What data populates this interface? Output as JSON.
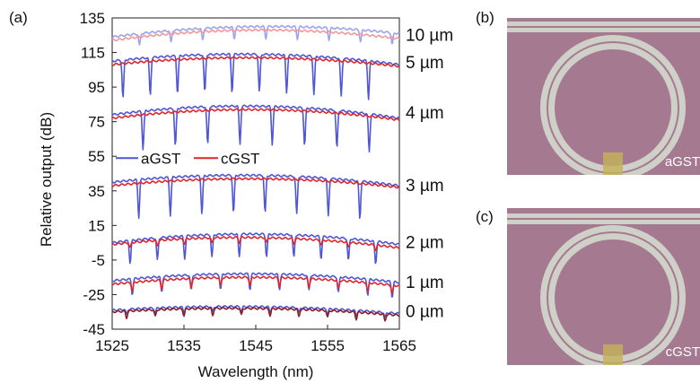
{
  "figure": {
    "panel_labels": {
      "a": "(a)",
      "b": "(b)",
      "c": "(c)"
    },
    "micrograph_b_label": "aGST",
    "micrograph_c_label": "cGST",
    "colors": {
      "aGST": "#4f56d8",
      "aGST_light": "#9fa2ec",
      "cGST": "#e0262c",
      "cGST_light": "#f0989b",
      "cGST_dark": "#8b1d24",
      "substrate": "#a57a91",
      "waveguide": "#cfd0c8",
      "gst_patch": "#c4b25a"
    }
  },
  "chart_data": {
    "type": "line",
    "title": "",
    "xlabel": "Wavelength (nm)",
    "ylabel": "Relative output (dB)",
    "xlim": [
      1525,
      1565
    ],
    "ylim": [
      -45,
      135
    ],
    "xticks": [
      "1525",
      "1535",
      "1545",
      "1555",
      "1565"
    ],
    "yticks": [
      "135",
      "115",
      "95",
      "75",
      "55",
      "35",
      "15",
      "-5",
      "-25",
      "-45"
    ],
    "legend": {
      "placement": "center-left",
      "entries": [
        "aGST",
        "cGST"
      ]
    },
    "grid": false,
    "series": [
      {
        "name": "aGST",
        "label": "10 µm",
        "baseline_start": 124,
        "baseline_peak": 130,
        "baseline_end": 126,
        "dip_depth": 7,
        "resonances": [
          1528.8,
          1533.2,
          1537.6,
          1542.0,
          1546.4,
          1550.8,
          1555.2,
          1559.6,
          1564.0
        ]
      },
      {
        "name": "cGST",
        "label": "10 µm",
        "baseline_start": 122,
        "baseline_peak": 128,
        "baseline_end": 123,
        "dip_depth": 0,
        "resonances": []
      },
      {
        "name": "aGST",
        "label": "5 µm",
        "baseline_start": 110,
        "baseline_peak": 114,
        "baseline_end": 108,
        "dip_depth": 22,
        "resonances": [
          1526.5,
          1530.3,
          1534.1,
          1537.9,
          1541.7,
          1545.5,
          1549.3,
          1553.1,
          1556.9,
          1560.7
        ]
      },
      {
        "name": "cGST",
        "label": "5 µm",
        "baseline_start": 108,
        "baseline_peak": 112,
        "baseline_end": 107,
        "dip_depth": 0,
        "resonances": []
      },
      {
        "name": "aGST",
        "label": "4 µm",
        "baseline_start": 79,
        "baseline_peak": 84,
        "baseline_end": 77,
        "dip_depth": 22,
        "resonances": [
          1529.3,
          1533.8,
          1538.3,
          1542.8,
          1547.3,
          1551.8,
          1556.3,
          1560.8
        ]
      },
      {
        "name": "cGST",
        "label": "4 µm",
        "baseline_start": 77,
        "baseline_peak": 82,
        "baseline_end": 76,
        "dip_depth": 0,
        "resonances": []
      },
      {
        "name": "aGST",
        "label": "3 µm",
        "baseline_start": 40,
        "baseline_peak": 44,
        "baseline_end": 38,
        "dip_depth": 22,
        "resonances": [
          1528.7,
          1533.1,
          1537.5,
          1541.9,
          1546.3,
          1550.7,
          1555.1,
          1559.5
        ]
      },
      {
        "name": "cGST",
        "label": "3 µm",
        "baseline_start": 38,
        "baseline_peak": 42,
        "baseline_end": 37,
        "dip_depth": 0,
        "resonances": []
      },
      {
        "name": "aGST",
        "label": "2 µm",
        "baseline_start": 5,
        "baseline_peak": 10,
        "baseline_end": 4,
        "dip_depth": 13,
        "resonances": [
          1527.5,
          1531.3,
          1535.1,
          1538.9,
          1542.7,
          1546.5,
          1550.3,
          1554.1,
          1557.9,
          1561.7
        ]
      },
      {
        "name": "cGST",
        "label": "2 µm",
        "baseline_start": 4,
        "baseline_peak": 8,
        "baseline_end": 2,
        "dip_depth": 3,
        "resonances": [
          1527.5,
          1531.3,
          1535.1,
          1538.9,
          1542.7,
          1546.5,
          1550.3,
          1554.1,
          1557.9,
          1561.7
        ]
      },
      {
        "name": "aGST",
        "label": "1 µm",
        "baseline_start": -17,
        "baseline_peak": -13,
        "baseline_end": -18,
        "dip_depth": 9,
        "resonances": [
          1527.8,
          1531.9,
          1536.0,
          1540.1,
          1544.2,
          1548.3,
          1552.4,
          1556.5,
          1560.6,
          1564.0
        ]
      },
      {
        "name": "cGST",
        "label": "1 µm",
        "baseline_start": -19,
        "baseline_peak": -15,
        "baseline_end": -20,
        "dip_depth": 5,
        "resonances": [
          1527.8,
          1531.9,
          1536.0,
          1540.1,
          1544.2,
          1548.3,
          1552.4,
          1556.5,
          1560.6,
          1564.0
        ]
      },
      {
        "name": "aGST",
        "label": "0 µm",
        "baseline_start": -34,
        "baseline_peak": -32,
        "baseline_end": -36,
        "dip_depth": 3,
        "resonances": [
          1527.0,
          1531.0,
          1535.0,
          1539.0,
          1543.0,
          1547.0,
          1551.0,
          1555.0,
          1559.0,
          1563.0
        ]
      },
      {
        "name": "cGST",
        "label": "0 µm",
        "baseline_start": -35,
        "baseline_peak": -33,
        "baseline_end": -37,
        "dip_depth": 4,
        "resonances": [
          1527.0,
          1531.0,
          1535.0,
          1539.0,
          1543.0,
          1547.0,
          1551.0,
          1555.0,
          1559.0,
          1563.0
        ]
      }
    ],
    "trace_labels": [
      {
        "text": "10 µm",
        "y": 125
      },
      {
        "text": "5 µm",
        "y": 109
      },
      {
        "text": "4 µm",
        "y": 80
      },
      {
        "text": "3 µm",
        "y": 38
      },
      {
        "text": "2 µm",
        "y": 5
      },
      {
        "text": "1 µm",
        "y": -18
      },
      {
        "text": "0 µm",
        "y": -35
      }
    ]
  }
}
